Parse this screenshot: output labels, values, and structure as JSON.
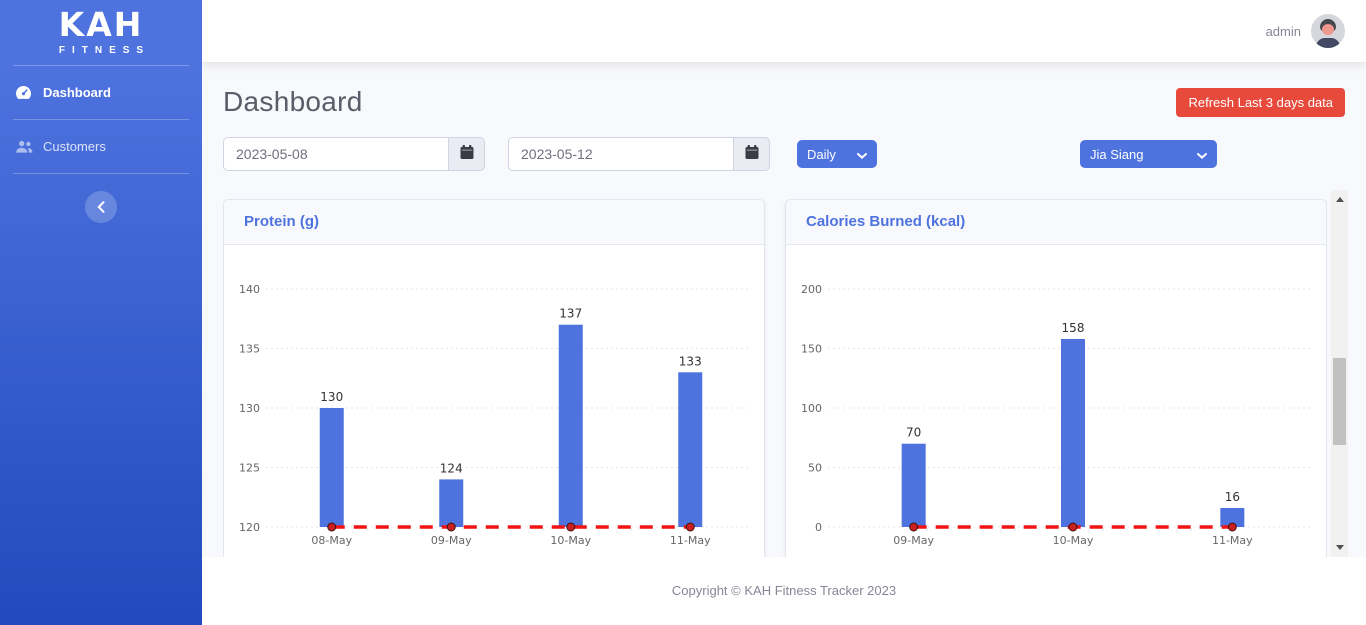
{
  "sidebar": {
    "brand": {
      "title": "KAH",
      "subtitle": "FITNESS"
    },
    "items": [
      {
        "label": "Dashboard",
        "icon": "speedometer-icon",
        "active": true
      },
      {
        "label": "Customers",
        "icon": "users-icon",
        "active": false
      }
    ],
    "collapse_icon": "chevron-left-icon"
  },
  "topbar": {
    "username": "admin"
  },
  "page": {
    "title": "Dashboard",
    "refresh_button_label": "Refresh Last 3 days data",
    "filters": {
      "date_from": "2023-05-08",
      "date_to": "2023-05-12",
      "frequency_selected": "Daily",
      "customer_selected": "Jia Siang"
    }
  },
  "footer": {
    "copyright": "Copyright © KAH Fitness Tracker 2023"
  },
  "colors": {
    "primary": "#4e73df",
    "danger": "#e74a3b",
    "sidebar_gradient_start": "#4e73df",
    "sidebar_gradient_end": "#224abe",
    "bar": "#4e73df",
    "goal_line_red": "#f21313",
    "title_text": "#5a5c69",
    "muted_text": "#858796"
  },
  "chart_data": [
    {
      "type": "bar",
      "title": "Protein (g)",
      "categories": [
        "08-May",
        "09-May",
        "10-May",
        "11-May"
      ],
      "values": [
        130,
        124,
        137,
        133
      ],
      "ylim": [
        120,
        140
      ],
      "ytick_step": 5,
      "grid": true,
      "legend": "none",
      "bar_color": "#4e73df",
      "overlay_line": {
        "type": "line",
        "style": "dashed",
        "color": "#f21313",
        "value": 120,
        "point_color": "#c9201f"
      }
    },
    {
      "type": "bar",
      "title": "Calories Burned (kcal)",
      "categories": [
        "09-May",
        "10-May",
        "11-May"
      ],
      "values": [
        70,
        158,
        16
      ],
      "ylim": [
        0,
        200
      ],
      "ytick_step": 50,
      "grid": true,
      "legend": "none",
      "bar_color": "#4e73df",
      "overlay_line": {
        "type": "line",
        "style": "dashed",
        "color": "#f21313",
        "value": 0,
        "point_color": "#c9201f"
      }
    }
  ]
}
